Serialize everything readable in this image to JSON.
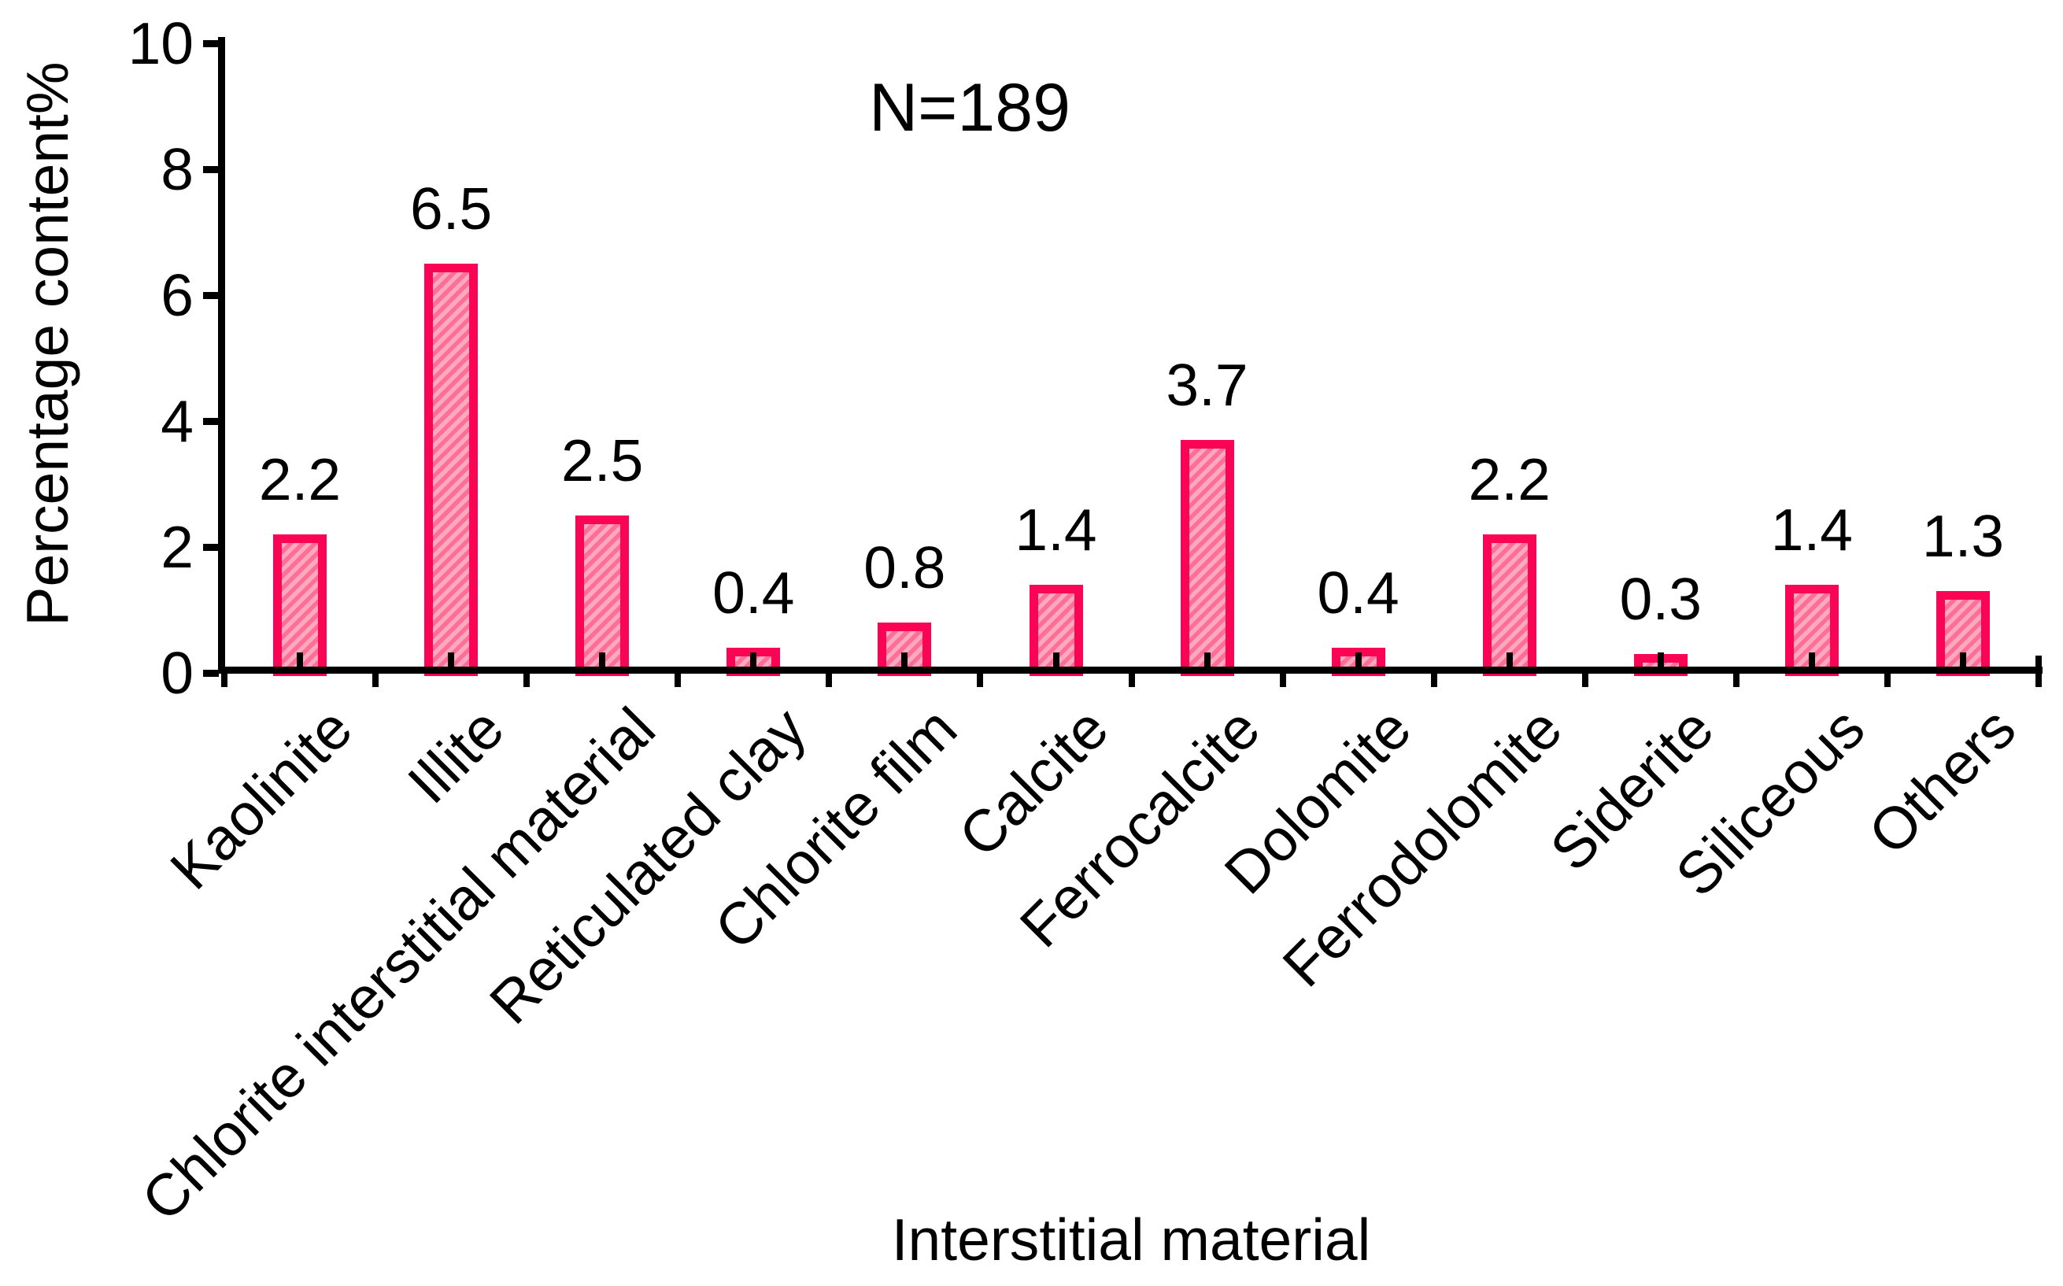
{
  "chart_data": {
    "type": "bar",
    "title": "",
    "annotation": "N=189",
    "xlabel": "Interstitial material",
    "ylabel": "Percentage content%",
    "categories": [
      "Kaolinite",
      "Illite",
      "Chlorite interstitial material",
      "Reticulated clay",
      "Chlorite film",
      "Calcite",
      "Ferrocalcite",
      "Dolomite",
      "Ferrodolomite",
      "Siderite",
      "Siliceous",
      "Others"
    ],
    "values": [
      2.2,
      6.5,
      2.5,
      0.4,
      0.8,
      1.4,
      3.7,
      0.4,
      2.2,
      0.3,
      1.4,
      1.3
    ],
    "value_labels": [
      "2.2",
      "6.5",
      "2.5",
      "0.4",
      "0.8",
      "1.4",
      "3.7",
      "0.4",
      "2.2",
      "0.3",
      "1.4",
      "1.3"
    ],
    "ylim": [
      0,
      10
    ],
    "yticks": [
      0,
      2,
      4,
      6,
      8,
      10
    ],
    "ytick_labels": [
      "0",
      "2",
      "4",
      "6",
      "8",
      "10"
    ],
    "grid": false,
    "legend": "none",
    "colors": {
      "bar_border": "#FA0455",
      "stripe_dark": "#FF6E96",
      "stripe_light": "#FFA9C1",
      "axis": "#000000",
      "background": "#FFFFFF",
      "text": "#000000"
    }
  }
}
